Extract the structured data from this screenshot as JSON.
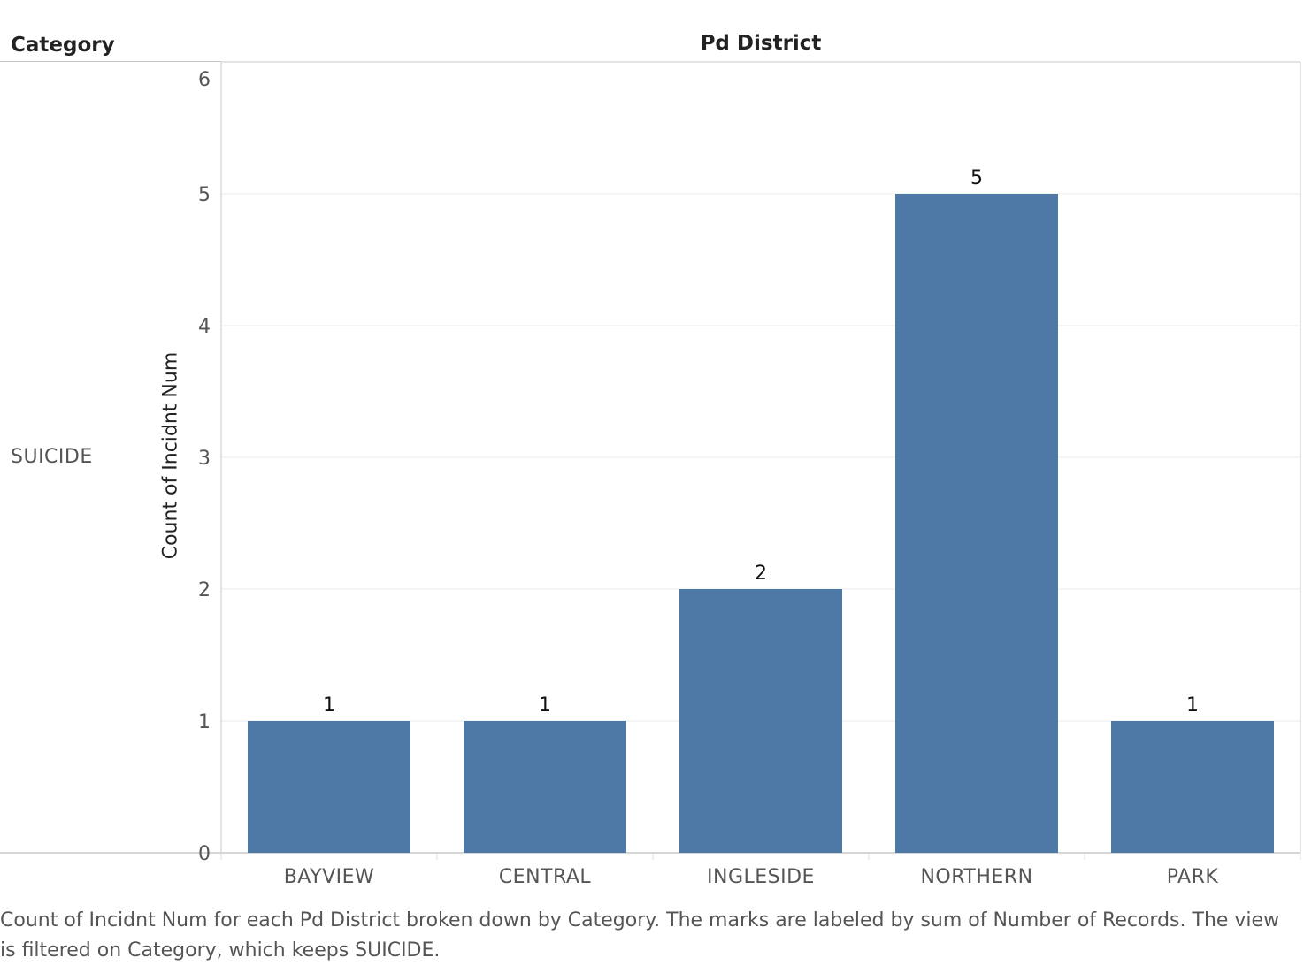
{
  "chart_data": {
    "type": "bar",
    "row_header": "Category",
    "row_value": "SUICIDE",
    "column_header": "Pd District",
    "categories": [
      "BAYVIEW",
      "CENTRAL",
      "INGLESIDE",
      "NORTHERN",
      "PARK"
    ],
    "values": [
      1,
      1,
      2,
      5,
      1
    ],
    "data_labels": [
      "1",
      "1",
      "2",
      "5",
      "1"
    ],
    "ylabel": "Count of Incidnt Num",
    "ylim": [
      0,
      6
    ],
    "yticks": [
      0,
      1,
      2,
      3,
      4,
      5,
      6
    ],
    "grid": true,
    "bar_color": "#4e79a7",
    "caption": "Count of Incidnt Num for each Pd District broken down by Category.  The marks are labeled by sum of Number of Records. The view is filtered on Category, which keeps SUICIDE."
  }
}
